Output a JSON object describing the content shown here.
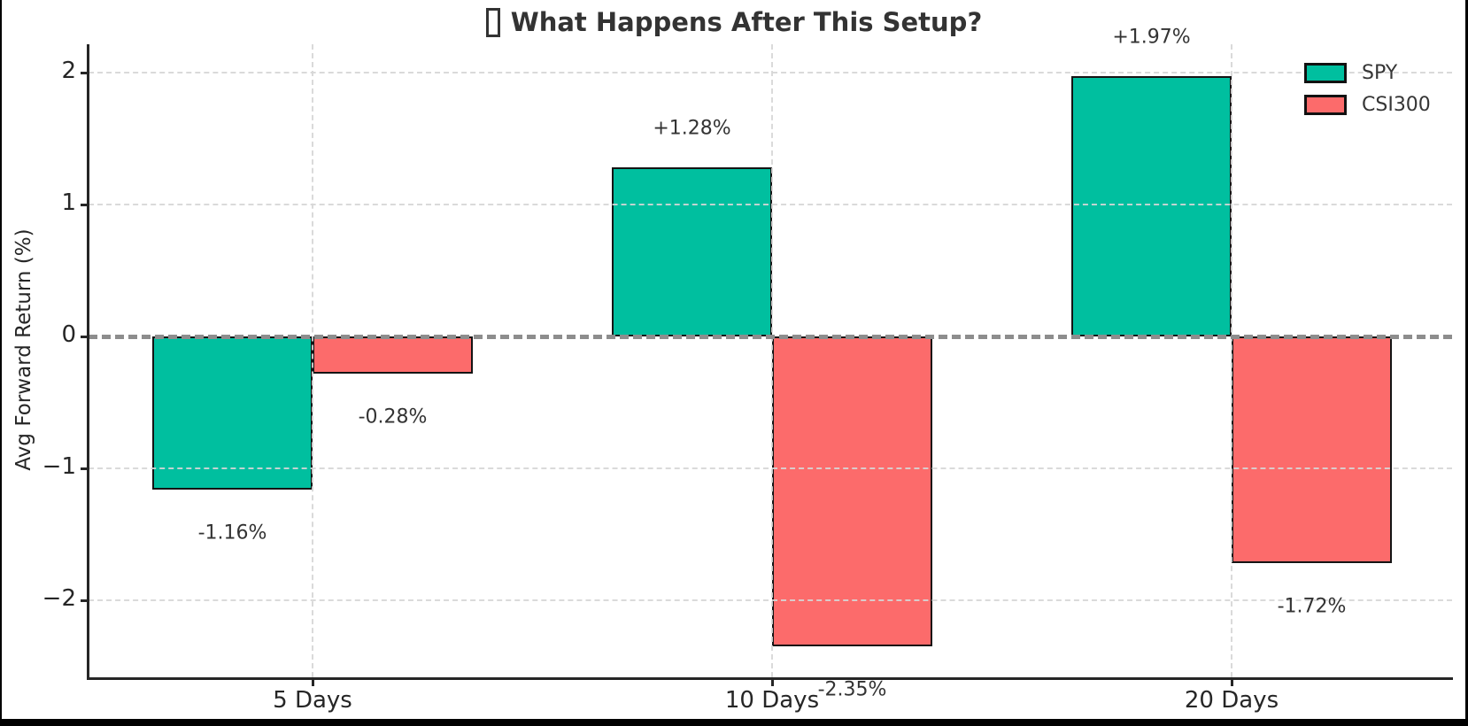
{
  "chart_data": {
    "type": "bar",
    "title": "What Happens After This Setup?",
    "title_has_missing_glyph_box": true,
    "ylabel": "Avg Forward Return (%)",
    "xlabel": "",
    "categories": [
      "5 Days",
      "10 Days",
      "20 Days"
    ],
    "series": [
      {
        "name": "SPY",
        "color": "#00bf9f",
        "values": [
          -1.16,
          1.28,
          1.97
        ],
        "labels": [
          "-1.16%",
          "+1.28%",
          "+1.97%"
        ]
      },
      {
        "name": "CSI300",
        "color": "#fc6b6b",
        "values": [
          -0.28,
          -2.35,
          -1.72
        ],
        "labels": [
          "-0.28%",
          "-2.35%",
          "-1.72%"
        ]
      }
    ],
    "y_ticks": [
      {
        "v": 2,
        "label": "2"
      },
      {
        "v": 1,
        "label": "1"
      },
      {
        "v": 0,
        "label": "0"
      },
      {
        "v": -1,
        "label": "−1"
      },
      {
        "v": -2,
        "label": "−2"
      }
    ],
    "ylim": [
      -2.58,
      2.21
    ],
    "grid": true,
    "zero_line": {
      "value": 0,
      "style": "dashed",
      "color": "#8d8d8d"
    },
    "legend_position": "upper right",
    "style_colors": {
      "bar_edge": "#141414",
      "axis": "#262626",
      "grid": "#d6d6d6",
      "title_text": "#333333",
      "value_label_text": "#333333",
      "background": "#ffffff",
      "window_edge": "#000000"
    }
  }
}
